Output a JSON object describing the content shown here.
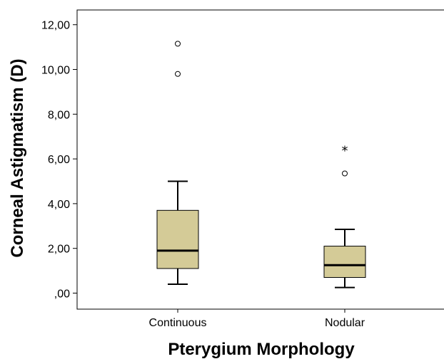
{
  "chart_data": {
    "type": "boxplot",
    "xlabel": "Pterygium Morphology",
    "ylabel": "Corneal Astigmatism (D)",
    "ylim": [
      -0.7,
      12.6
    ],
    "yticks": [
      0,
      2,
      4,
      6,
      8,
      10,
      12
    ],
    "ytick_labels": [
      ",00",
      "2,00",
      "4,00",
      "6,00",
      "8,00",
      "10,00",
      "12,00"
    ],
    "categories": [
      "Continuous",
      "Nodular"
    ],
    "box_color": "#d4cb97",
    "boxes": [
      {
        "category": "Continuous",
        "whisker_low": 0.4,
        "q1": 1.1,
        "median": 1.9,
        "q3": 3.7,
        "whisker_high": 5.0,
        "outliers": [
          9.8,
          11.15
        ],
        "extremes": []
      },
      {
        "category": "Nodular",
        "whisker_low": 0.25,
        "q1": 0.7,
        "median": 1.25,
        "q3": 2.1,
        "whisker_high": 2.85,
        "outliers": [
          5.35
        ],
        "extremes": [
          6.5
        ]
      }
    ]
  }
}
